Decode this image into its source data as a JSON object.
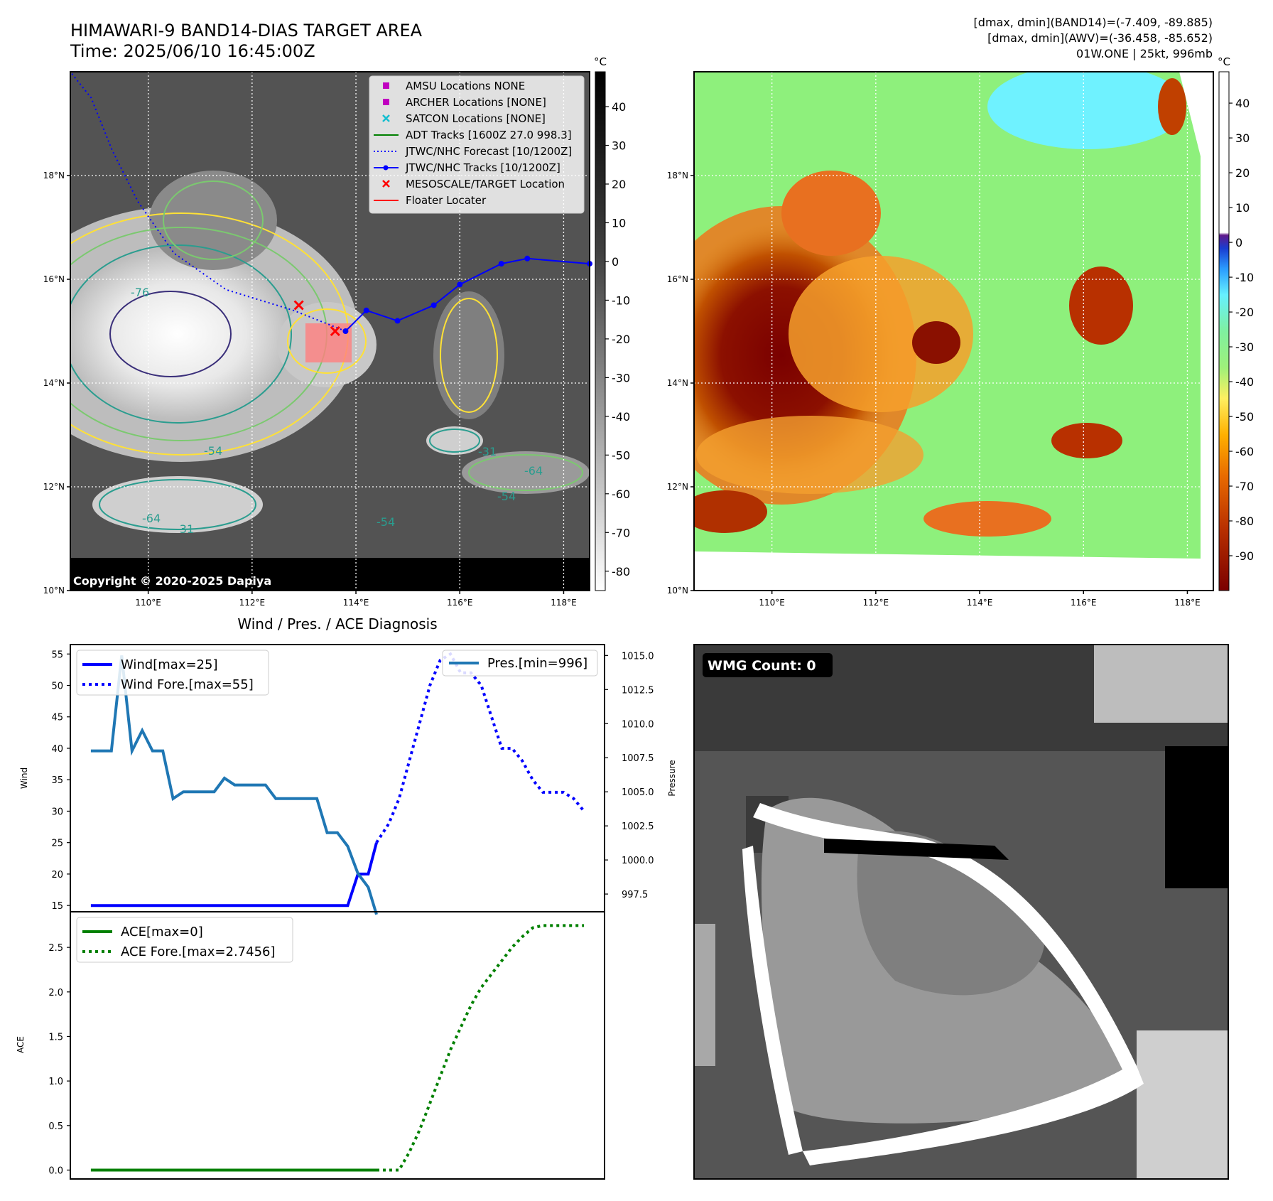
{
  "title": "HIMAWARI-9 BAND14-DIAS TARGET AREA",
  "time_label": "Time: 2025/06/10 16:45:00Z",
  "info_lines": [
    "[dmax, dmin](BAND14)=(-7.409, -89.885)",
    "[dmax, dmin](AWV)=(-36.458, -85.652)",
    "01W.ONE | 25kt, 996mb"
  ],
  "copyright": "Copyright © 2020-2025 Dapiya",
  "colors": {
    "wind": "#0000ff",
    "pressure": "#1f77b4",
    "ace": "#008000",
    "track": "#0000ff",
    "target": "#ff0000",
    "amsu": "#c000c0",
    "satcon": "#17becf",
    "adt": "#008000",
    "contour_yellow": "#ffe135",
    "contour_green": "#7bc96f",
    "contour_teal": "#2a9d8f",
    "contour_navy": "#3a2f7a"
  },
  "map": {
    "lon_ticks": [
      "110°E",
      "112°E",
      "114°E",
      "116°E",
      "118°E"
    ],
    "lat_ticks": [
      "18°N",
      "16°N",
      "14°N",
      "12°N",
      "10°N"
    ],
    "lon_values": [
      110,
      112,
      114,
      116,
      118
    ],
    "lat_values": [
      18,
      16,
      14,
      12,
      10
    ],
    "extent": {
      "lon": [
        108.5,
        118.5
      ],
      "lat": [
        10,
        20
      ]
    },
    "contour_labels": [
      "-76",
      "-54",
      "-31",
      "-64",
      "-54",
      "-31",
      "-54",
      "-64"
    ]
  },
  "legend": [
    {
      "label": "AMSU Locations NONE",
      "marker": "square",
      "color": "#c000c0"
    },
    {
      "label": "ARCHER Locations [NONE]",
      "marker": "square",
      "color": "#c000c0"
    },
    {
      "label": "SATCON Locations [NONE]",
      "marker": "x",
      "color": "#17becf"
    },
    {
      "label": "ADT Tracks [1600Z 27.0 998.3]",
      "marker": "line",
      "color": "#008000"
    },
    {
      "label": "JTWC/NHC Forecast [10/1200Z]",
      "marker": "dotted",
      "color": "#0000ff"
    },
    {
      "label": "JTWC/NHC Tracks [10/1200Z]",
      "marker": "line-dot",
      "color": "#0000ff"
    },
    {
      "label": "MESOSCALE/TARGET Location",
      "marker": "x",
      "color": "#ff0000"
    },
    {
      "label": "Floater Locater",
      "marker": "line",
      "color": "#ff0000"
    }
  ],
  "colorbar_unit": "°C",
  "colorbar1_ticks": [
    40,
    30,
    20,
    10,
    0,
    -10,
    -20,
    -30,
    -40,
    -50,
    -60,
    -70,
    -80
  ],
  "colorbar1_range": [
    -85,
    49
  ],
  "colorbar2_ticks": [
    40,
    30,
    20,
    10,
    0,
    -10,
    -20,
    -30,
    -40,
    -50,
    -60,
    -70,
    -80,
    -90
  ],
  "colorbar2_range": [
    -100,
    49
  ],
  "track_points": [
    {
      "lon": 113.8,
      "lat": 15.0
    },
    {
      "lon": 114.2,
      "lat": 15.4
    },
    {
      "lon": 114.8,
      "lat": 15.2
    },
    {
      "lon": 115.5,
      "lat": 15.5
    },
    {
      "lon": 116.0,
      "lat": 15.9
    },
    {
      "lon": 116.8,
      "lat": 16.3
    },
    {
      "lon": 117.3,
      "lat": 16.4
    },
    {
      "lon": 118.5,
      "lat": 16.3
    }
  ],
  "forecast_points": [
    {
      "lon": 113.8,
      "lat": 15.0
    },
    {
      "lon": 112.8,
      "lat": 15.4
    },
    {
      "lon": 111.5,
      "lat": 15.8
    },
    {
      "lon": 110.5,
      "lat": 16.5
    },
    {
      "lon": 109.8,
      "lat": 17.5
    },
    {
      "lon": 109.3,
      "lat": 18.5
    },
    {
      "lon": 108.9,
      "lat": 19.5
    },
    {
      "lon": 108.5,
      "lat": 20.0
    }
  ],
  "target_points": [
    {
      "lon": 112.9,
      "lat": 15.5
    },
    {
      "lon": 113.6,
      "lat": 15.0
    }
  ],
  "diag_title": "Wind / Pres. / ACE Diagnosis",
  "wmg_label": "WMG Count: 0",
  "chart_data": [
    {
      "type": "line",
      "title": "Wind / Pres. / ACE Diagnosis",
      "ylabel": "Wind",
      "y2label": "Pressure",
      "ylim": [
        14,
        56.5
      ],
      "y2lim": [
        996.2,
        1015.8
      ],
      "yticks": [
        15,
        20,
        25,
        30,
        35,
        40,
        45,
        50,
        55
      ],
      "y2ticks": [
        997.5,
        1000.0,
        1002.5,
        1005.0,
        1007.5,
        1010.0,
        1012.5,
        1015.0
      ],
      "x": [
        0,
        1,
        2,
        3,
        4,
        5,
        6,
        7,
        8,
        9,
        10,
        11,
        12,
        13,
        14,
        15,
        16,
        17,
        18,
        19,
        20,
        21,
        22,
        23,
        24,
        25,
        26,
        27,
        28,
        29,
        30,
        31,
        32,
        33,
        34,
        35,
        36,
        37,
        38,
        39,
        40,
        41,
        42,
        43,
        44,
        45,
        46,
        47,
        48
      ],
      "xlim": [
        -2,
        50
      ],
      "series": [
        {
          "name": "Wind[max=25]",
          "style": "solid",
          "color": "#0000ff",
          "axis": "left",
          "x": [
            0,
            1,
            2,
            3,
            4,
            5,
            6,
            7,
            8,
            9,
            10,
            11,
            12,
            13,
            14,
            15,
            16,
            17,
            18,
            19,
            20,
            21,
            22,
            23,
            24,
            25,
            26,
            27,
            27.8
          ],
          "values": [
            15,
            15,
            15,
            15,
            15,
            15,
            15,
            15,
            15,
            15,
            15,
            15,
            15,
            15,
            15,
            15,
            15,
            15,
            15,
            15,
            15,
            15,
            15,
            15,
            15,
            15,
            20,
            20,
            25
          ]
        },
        {
          "name": "Wind Fore.[max=55]",
          "style": "dotted",
          "color": "#0000ff",
          "axis": "left",
          "x": [
            27.8,
            29,
            30,
            31,
            32,
            33,
            34,
            35,
            36,
            37,
            38,
            39,
            40,
            41,
            42,
            43,
            44,
            45,
            46,
            47,
            48
          ],
          "values": [
            25,
            28,
            32,
            38,
            44,
            50,
            54,
            55,
            52,
            52,
            50,
            45,
            40,
            40,
            38,
            35,
            33,
            33,
            33,
            32,
            30
          ]
        },
        {
          "name": "Pres.[min=996]",
          "style": "solid",
          "color": "#1f77b4",
          "axis": "right",
          "x": [
            0,
            1,
            2,
            3,
            4,
            5,
            6,
            7,
            8,
            9,
            10,
            11,
            12,
            13,
            14,
            15,
            16,
            17,
            18,
            19,
            20,
            21,
            22,
            23,
            24,
            25,
            26,
            27,
            27.8
          ],
          "values": [
            1008,
            1008,
            1008,
            1015,
            1008,
            1009.5,
            1008,
            1008,
            1004.5,
            1005,
            1005,
            1005,
            1005,
            1006,
            1005.5,
            1005.5,
            1005.5,
            1005.5,
            1004.5,
            1004.5,
            1004.5,
            1004.5,
            1004.5,
            1002,
            1002,
            1001,
            999,
            998,
            996
          ]
        }
      ]
    },
    {
      "type": "line",
      "ylabel": "ACE",
      "ylim": [
        -0.1,
        2.9
      ],
      "yticks": [
        0.0,
        0.5,
        1.0,
        1.5,
        2.0,
        2.5
      ],
      "xlim": [
        -2,
        50
      ],
      "series": [
        {
          "name": "ACE[max=0]",
          "style": "solid",
          "color": "#008000",
          "x": [
            0,
            2,
            4,
            6,
            8,
            10,
            12,
            14,
            16,
            18,
            20,
            22,
            24,
            26,
            27.8
          ],
          "values": [
            0,
            0,
            0,
            0,
            0,
            0,
            0,
            0,
            0,
            0,
            0,
            0,
            0,
            0,
            0
          ]
        },
        {
          "name": "ACE Fore.[max=2.7456]",
          "style": "dotted",
          "color": "#008000",
          "x": [
            27.8,
            29,
            30,
            31,
            32,
            33,
            34,
            35,
            36,
            37,
            38,
            39,
            40,
            41,
            42,
            43,
            44,
            45,
            46,
            47,
            48
          ],
          "values": [
            0,
            0,
            0,
            0.2,
            0.45,
            0.75,
            1.05,
            1.35,
            1.6,
            1.85,
            2.05,
            2.2,
            2.35,
            2.5,
            2.62,
            2.72,
            2.7456,
            2.7456,
            2.7456,
            2.7456,
            2.7456
          ]
        }
      ]
    }
  ]
}
